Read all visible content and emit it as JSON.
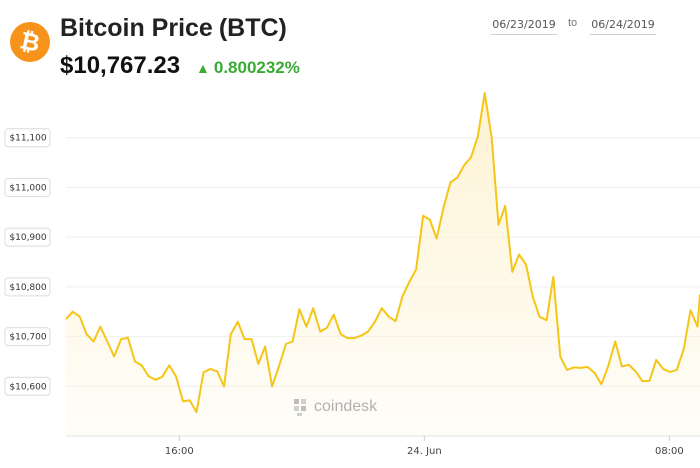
{
  "header": {
    "logo_icon": "bitcoin-icon",
    "logo_glyph": "₿",
    "title": "Bitcoin Price",
    "symbol": "(BTC)",
    "price": "$10,767.23",
    "change_arrow": "▲",
    "change": "0.800232%",
    "change_color": "#3aaa35",
    "date_from": "06/23/2019",
    "date_separator": "to",
    "date_to": "06/24/2019"
  },
  "watermark": "coindesk",
  "chart_data": {
    "type": "area",
    "title": "",
    "xlabel": "",
    "ylabel": "",
    "line_color": "#f5c518",
    "fill_color": "#fdf3d4",
    "ylim": [
      10500,
      11200
    ],
    "yticks": [
      10600,
      10700,
      10800,
      10900,
      11000,
      11100
    ],
    "ytick_labels": [
      "$10,600",
      "$10,700",
      "$10,800",
      "$10,900",
      "$11,000",
      "$11,100"
    ],
    "xticks": [
      16,
      24,
      32
    ],
    "xtick_labels": [
      "16:00",
      "24. Jun",
      "08:00"
    ],
    "xlim": [
      12.3,
      33.0
    ],
    "grid": true,
    "series": [
      {
        "x": [
          12.3,
          12.52,
          12.75,
          12.97,
          13.2,
          13.42,
          13.65,
          13.87,
          14.1,
          14.32,
          14.55,
          14.77,
          15.0,
          15.22,
          15.44,
          15.67,
          15.89,
          16.12,
          16.34,
          16.56,
          16.79,
          17.01,
          17.24,
          17.46,
          17.68,
          17.91,
          18.13,
          18.36,
          18.58,
          18.8,
          19.03,
          19.25,
          19.48,
          19.7,
          19.92,
          20.15,
          20.37,
          20.6,
          20.82,
          21.04,
          21.27,
          21.49,
          21.72,
          21.94,
          22.16,
          22.39,
          22.61,
          22.84,
          23.06,
          23.28,
          23.51,
          23.73,
          23.96,
          24.18,
          24.4,
          24.63,
          24.85,
          25.08,
          25.3,
          25.52,
          25.75,
          25.97,
          26.2,
          26.42,
          26.64,
          26.87,
          27.09,
          27.32,
          27.54,
          27.76,
          27.99,
          28.21,
          28.44,
          28.66,
          28.88,
          29.11,
          29.33,
          29.56,
          29.78,
          30.0,
          30.23,
          30.45,
          30.68,
          30.9,
          31.12,
          31.35,
          31.57,
          31.8,
          32.02,
          32.24,
          32.47,
          32.69,
          32.92,
          33.0
        ],
        "y": [
          10735,
          10750,
          10740,
          10705,
          10690,
          10720,
          10690,
          10660,
          10695,
          10698,
          10650,
          10642,
          10620,
          10613,
          10619,
          10642,
          10620,
          10570,
          10572,
          10548,
          10628,
          10635,
          10630,
          10600,
          10705,
          10730,
          10695,
          10695,
          10645,
          10680,
          10600,
          10640,
          10685,
          10690,
          10755,
          10720,
          10757,
          10710,
          10718,
          10744,
          10705,
          10697,
          10697,
          10702,
          10710,
          10730,
          10757,
          10740,
          10731,
          10780,
          10810,
          10835,
          10943,
          10935,
          10897,
          10960,
          11010,
          11020,
          11045,
          11060,
          11103,
          11190,
          11100,
          10925,
          10963,
          10830,
          10865,
          10845,
          10780,
          10740,
          10733,
          10820,
          10660,
          10633,
          10638,
          10637,
          10639,
          10627,
          10604,
          10640,
          10690,
          10640,
          10643,
          10630,
          10610,
          10611,
          10653,
          10635,
          10629,
          10633,
          10675,
          10753,
          10720,
          10785
        ]
      }
    ]
  }
}
